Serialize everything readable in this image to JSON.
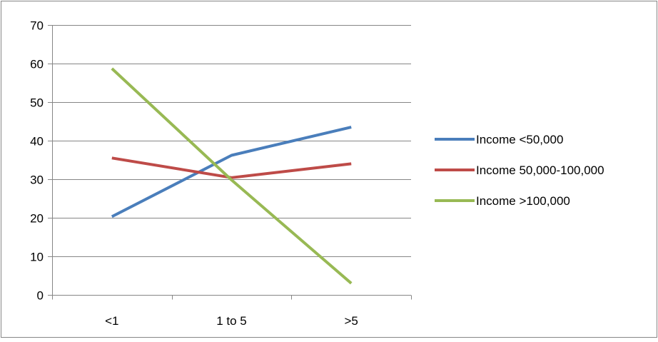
{
  "chart_data": {
    "type": "line",
    "categories": [
      "<1",
      "1 to 5",
      ">5"
    ],
    "series": [
      {
        "name": "Income <50,000",
        "values": [
          20.3,
          36.2,
          43.5
        ],
        "color": "#4A7EBB"
      },
      {
        "name": "Income 50,000-100,000",
        "values": [
          35.5,
          30.4,
          34.0
        ],
        "color": "#BE4B48"
      },
      {
        "name": "Income >100,000",
        "values": [
          58.7,
          29.8,
          3.0
        ],
        "color": "#98B954"
      }
    ],
    "ylim": [
      0,
      70
    ],
    "yticks": [
      0,
      10,
      20,
      30,
      40,
      50,
      60,
      70
    ],
    "grid": true,
    "legend_position": "right",
    "title": "",
    "xlabel": "",
    "ylabel": ""
  }
}
